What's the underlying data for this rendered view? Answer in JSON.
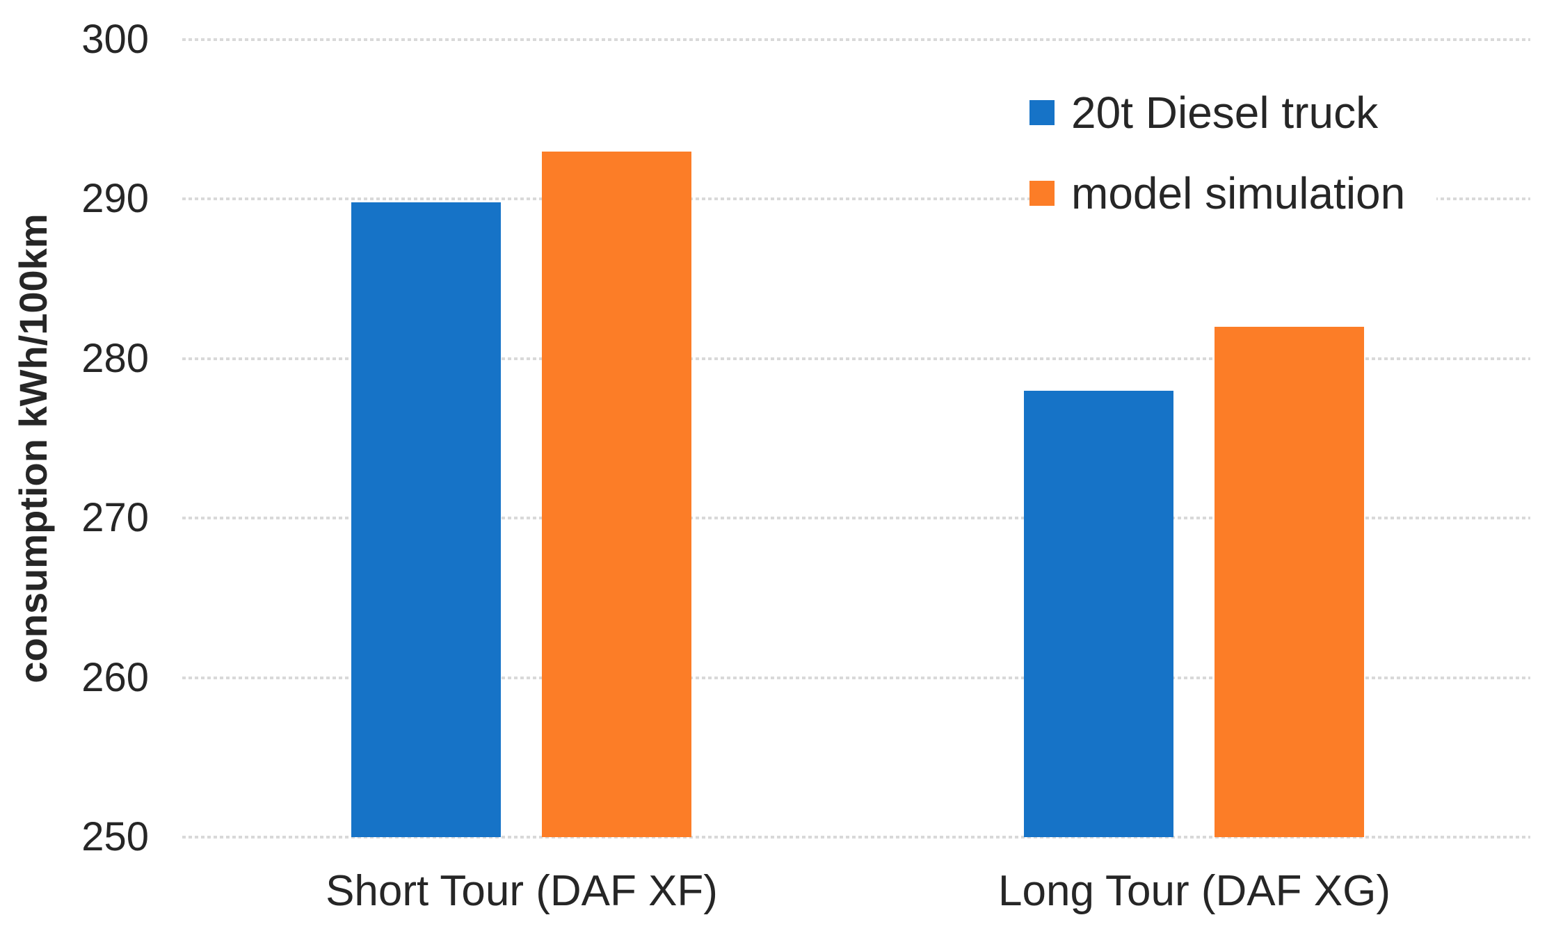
{
  "chart_data": {
    "type": "bar",
    "ylabel": "consumption kWh/100km",
    "xlabel": "",
    "ylim": [
      250,
      300
    ],
    "yticks": [
      300,
      290,
      280,
      270,
      260,
      250
    ],
    "categories": [
      "Short Tour (DAF XF)",
      "Long Tour (DAF XG)"
    ],
    "series": [
      {
        "name": "20t Diesel truck",
        "color": "#1673C7",
        "values": [
          289.8,
          278
        ]
      },
      {
        "name": "model simulation",
        "color": "#FC7D27",
        "values": [
          293,
          282
        ]
      }
    ],
    "legend_position": "top-right",
    "grid": "horizontal-dotted",
    "grid_color": "#d9d9d9",
    "text_color": "#262626",
    "background": "#ffffff"
  }
}
